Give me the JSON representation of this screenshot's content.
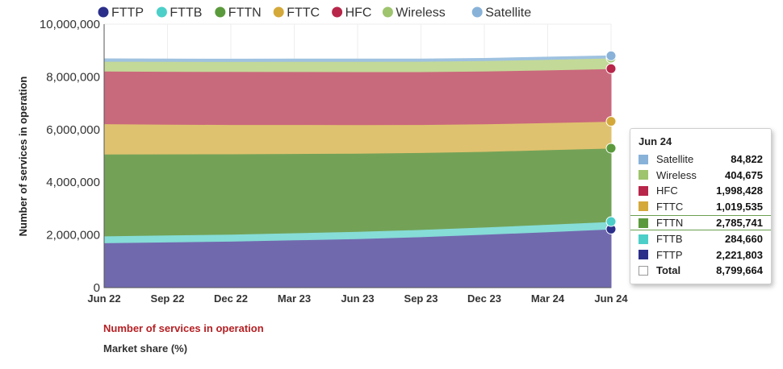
{
  "chart_data": {
    "type": "area",
    "stacked": true,
    "ylabel": "Number of services in operation",
    "ylim": [
      0,
      10000000
    ],
    "yticks": [
      "0",
      "2,000,000",
      "4,000,000",
      "6,000,000",
      "8,000,000",
      "10,000,000"
    ],
    "ytick_values": [
      0,
      2000000,
      4000000,
      6000000,
      8000000,
      10000000
    ],
    "categories": [
      "Jun 22",
      "Sep 22",
      "Dec 22",
      "Mar 23",
      "Jun 23",
      "Sep 23",
      "Dec 23",
      "Mar 24",
      "Jun 24"
    ],
    "legend_position": "top",
    "series": [
      {
        "name": "FTTP",
        "color": "#2b2f8a",
        "fill": "#7169ae",
        "values": [
          1700000,
          1730000,
          1760000,
          1810000,
          1860000,
          1930000,
          2020000,
          2120000,
          2221803
        ]
      },
      {
        "name": "FTTB",
        "color": "#4ccfc9",
        "fill": "#86dcd7",
        "values": [
          260000,
          263000,
          266000,
          269000,
          272000,
          275000,
          278000,
          281000,
          284660
        ]
      },
      {
        "name": "FTTN",
        "color": "#5b9a3c",
        "fill": "#73a257",
        "values": [
          3110000,
          3080000,
          3050000,
          3010000,
          2970000,
          2920000,
          2870000,
          2830000,
          2785741
        ]
      },
      {
        "name": "FTTC",
        "color": "#d4a93a",
        "fill": "#dfc26f",
        "values": [
          1150000,
          1130000,
          1115000,
          1100000,
          1085000,
          1065000,
          1045000,
          1030000,
          1019535
        ]
      },
      {
        "name": "HFC",
        "color": "#b8264a",
        "fill": "#c9697c",
        "values": [
          2000000,
          2005000,
          2010000,
          2010000,
          2008000,
          2005000,
          2003000,
          2000000,
          1998428
        ]
      },
      {
        "name": "Wireless",
        "color": "#9ec46d",
        "fill": "#c3d998",
        "values": [
          370000,
          375000,
          380000,
          385000,
          390000,
          395000,
          398000,
          402000,
          404675
        ]
      },
      {
        "name": "Satellite",
        "color": "#88b2d8",
        "fill": "#9fc2e0",
        "values": [
          95000,
          93000,
          92000,
          91000,
          90000,
          89000,
          87000,
          86000,
          84822
        ]
      }
    ]
  },
  "tooltip": {
    "title": "Jun 24",
    "rows": [
      {
        "name": "Satellite",
        "value": "84,822",
        "color": "#88b2d8"
      },
      {
        "name": "Wireless",
        "value": "404,675",
        "color": "#9ec46d"
      },
      {
        "name": "HFC",
        "value": "1,998,428",
        "color": "#b8264a"
      },
      {
        "name": "FTTC",
        "value": "1,019,535",
        "color": "#d4a93a"
      },
      {
        "name": "FTTN",
        "value": "2,785,741",
        "color": "#5b9a3c"
      },
      {
        "name": "FTTB",
        "value": "284,660",
        "color": "#4ccfc9"
      },
      {
        "name": "FTTP",
        "value": "2,221,803",
        "color": "#2b2f8a"
      },
      {
        "name": "Total",
        "value": "8,799,664",
        "color": "#ffffff"
      }
    ]
  },
  "links": {
    "services": "Number of services in operation",
    "market_share": "Market share (%)"
  }
}
